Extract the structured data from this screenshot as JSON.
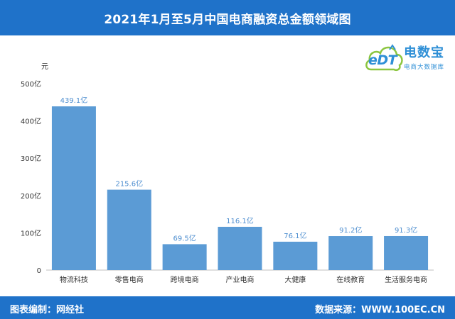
{
  "header": {
    "title": "2021年1月至5月中国电商融资总金额领域图"
  },
  "logo": {
    "mark": "eDT",
    "brand": "电数宝",
    "subtitle": "电商大数据库"
  },
  "footer": {
    "left_text": "图表编制：网经社",
    "right_text": "数据来源：WWW.100EC.CN"
  },
  "colors": {
    "bar": "#5b9bd5",
    "header_bg": "#1f72c9",
    "label": "#4f8fd0"
  },
  "chart_data": {
    "type": "bar",
    "title": "2021年1月至5月中国电商融资总金额领域图",
    "ylabel": "元",
    "xlabel": "",
    "ylim": [
      0,
      500
    ],
    "yticks": [
      {
        "value": 0,
        "label": "0"
      },
      {
        "value": 100,
        "label": "100亿"
      },
      {
        "value": 200,
        "label": "200亿"
      },
      {
        "value": 300,
        "label": "300亿"
      },
      {
        "value": 400,
        "label": "400亿"
      },
      {
        "value": 500,
        "label": "500亿"
      }
    ],
    "grid": false,
    "categories": [
      "物流科技",
      "零售电商",
      "跨境电商",
      "产业电商",
      "大健康",
      "在线教育",
      "生活服务电商"
    ],
    "values": [
      439.1,
      215.6,
      69.5,
      116.1,
      76.1,
      91.2,
      91.3
    ],
    "value_labels": [
      "439.1亿",
      "215.6亿",
      "69.5亿",
      "116.1亿",
      "76.1亿",
      "91.2亿",
      "91.3亿"
    ]
  }
}
